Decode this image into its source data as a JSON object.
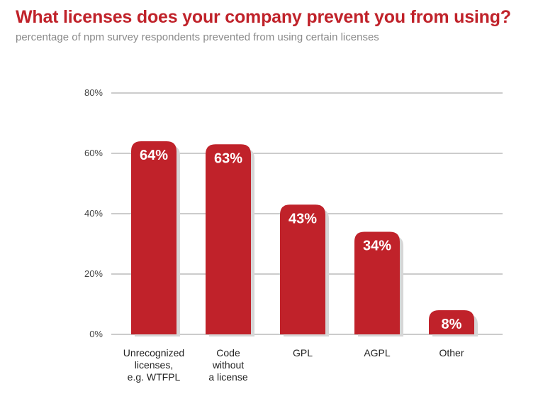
{
  "header": {
    "title": "What licenses does your company prevent you from using?",
    "subtitle": "percentage of npm survey respondents prevented from using certain licenses"
  },
  "colors": {
    "bar": "#c0222a",
    "shadow": "#d6d6d6",
    "grid": "#999999",
    "title": "#c0222a"
  },
  "chart_data": {
    "type": "bar",
    "title": "What licenses does your company prevent you from using?",
    "subtitle": "percentage of npm survey respondents prevented from using certain licenses",
    "xlabel": "",
    "ylabel": "",
    "ylim": [
      0,
      80
    ],
    "yticks": [
      0,
      20,
      40,
      60,
      80
    ],
    "ytick_labels": [
      "0%",
      "20%",
      "40%",
      "60%",
      "80%"
    ],
    "grid": true,
    "categories": [
      [
        "Unrecognized",
        "licenses,",
        "e.g. WTFPL"
      ],
      [
        "Code",
        "without",
        "a license"
      ],
      [
        "GPL"
      ],
      [
        "AGPL"
      ],
      [
        "Other"
      ]
    ],
    "values": [
      64,
      63,
      43,
      34,
      8
    ],
    "value_labels": [
      "64%",
      "63%",
      "43%",
      "34%",
      "8%"
    ]
  }
}
